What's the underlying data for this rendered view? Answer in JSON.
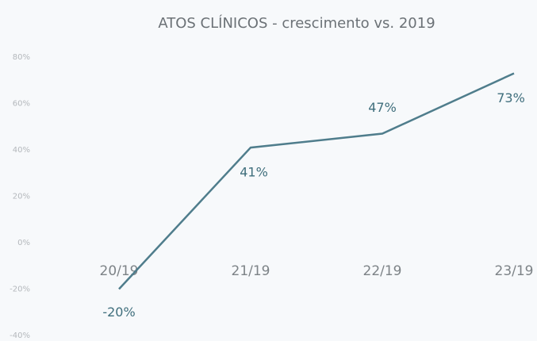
{
  "chart_data": {
    "type": "line",
    "title": "ATOS CLÍNICOS - crescimento vs. 2019",
    "categories": [
      "20/19",
      "21/19",
      "22/19",
      "23/19"
    ],
    "series": [
      {
        "name": null,
        "color": "#4f7d8c",
        "values": [
          -20,
          41,
          47,
          73
        ],
        "value_labels": [
          "-20%",
          "41%",
          "47%",
          "73%"
        ]
      }
    ],
    "ylim": [
      -40,
      80
    ],
    "yticks": [
      {
        "value": -40,
        "label": "-40%"
      },
      {
        "value": -20,
        "label": "-20%"
      },
      {
        "value": 0,
        "label": "0%"
      },
      {
        "value": 20,
        "label": "20%"
      },
      {
        "value": 40,
        "label": "40%"
      },
      {
        "value": 60,
        "label": "60%"
      },
      {
        "value": 80,
        "label": "80%"
      }
    ],
    "grid": false
  }
}
